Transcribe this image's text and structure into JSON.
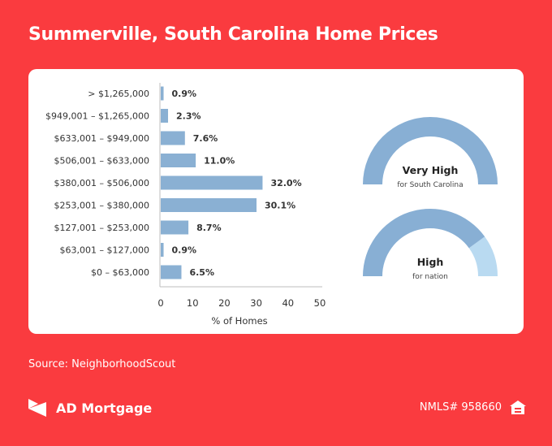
{
  "header": {
    "title": "Summerville, South Carolina Home Prices"
  },
  "chart_data": {
    "type": "bar",
    "orientation": "horizontal",
    "categories": [
      "> $1,265,000",
      "$949,001 – $1,265,000",
      "$633,001 – $949,000",
      "$506,001 – $633,000",
      "$380,001 – $506,000",
      "$253,001 – $380,000",
      "$127,001 – $253,000",
      "$63,001 – $127,000",
      "$0 – $63,000"
    ],
    "values": [
      0.9,
      2.3,
      7.6,
      11.0,
      32.0,
      30.1,
      8.7,
      0.9,
      6.5
    ],
    "value_labels": [
      "0.9%",
      "2.3%",
      "7.6%",
      "11.0%",
      "32.0%",
      "30.1%",
      "8.7%",
      "0.9%",
      "6.5%"
    ],
    "xlabel": "% of Homes",
    "ylabel": "",
    "xlim": [
      0,
      50
    ],
    "xticks": [
      0,
      10,
      20,
      30,
      40,
      50
    ],
    "grid": false,
    "bar_color": "#8ab0d3"
  },
  "gauges": [
    {
      "label": "Very High",
      "sublabel": "for South Carolina",
      "level": 1.0
    },
    {
      "label": "High",
      "sublabel": "for nation",
      "level": 0.8
    }
  ],
  "colors": {
    "background": "#fa3b3f",
    "bar": "#8ab0d3",
    "gauge_fill": "#88afd4",
    "gauge_empty": "#b9daf1",
    "text": "#333333"
  },
  "footer": {
    "source": "Source: NeighborhoodScout",
    "brand": "AD Mortgage",
    "logo_icon": "ad-mortgage-logo-icon",
    "nmls": "NMLS# 958660",
    "housing_icon": "equal-housing-icon"
  }
}
